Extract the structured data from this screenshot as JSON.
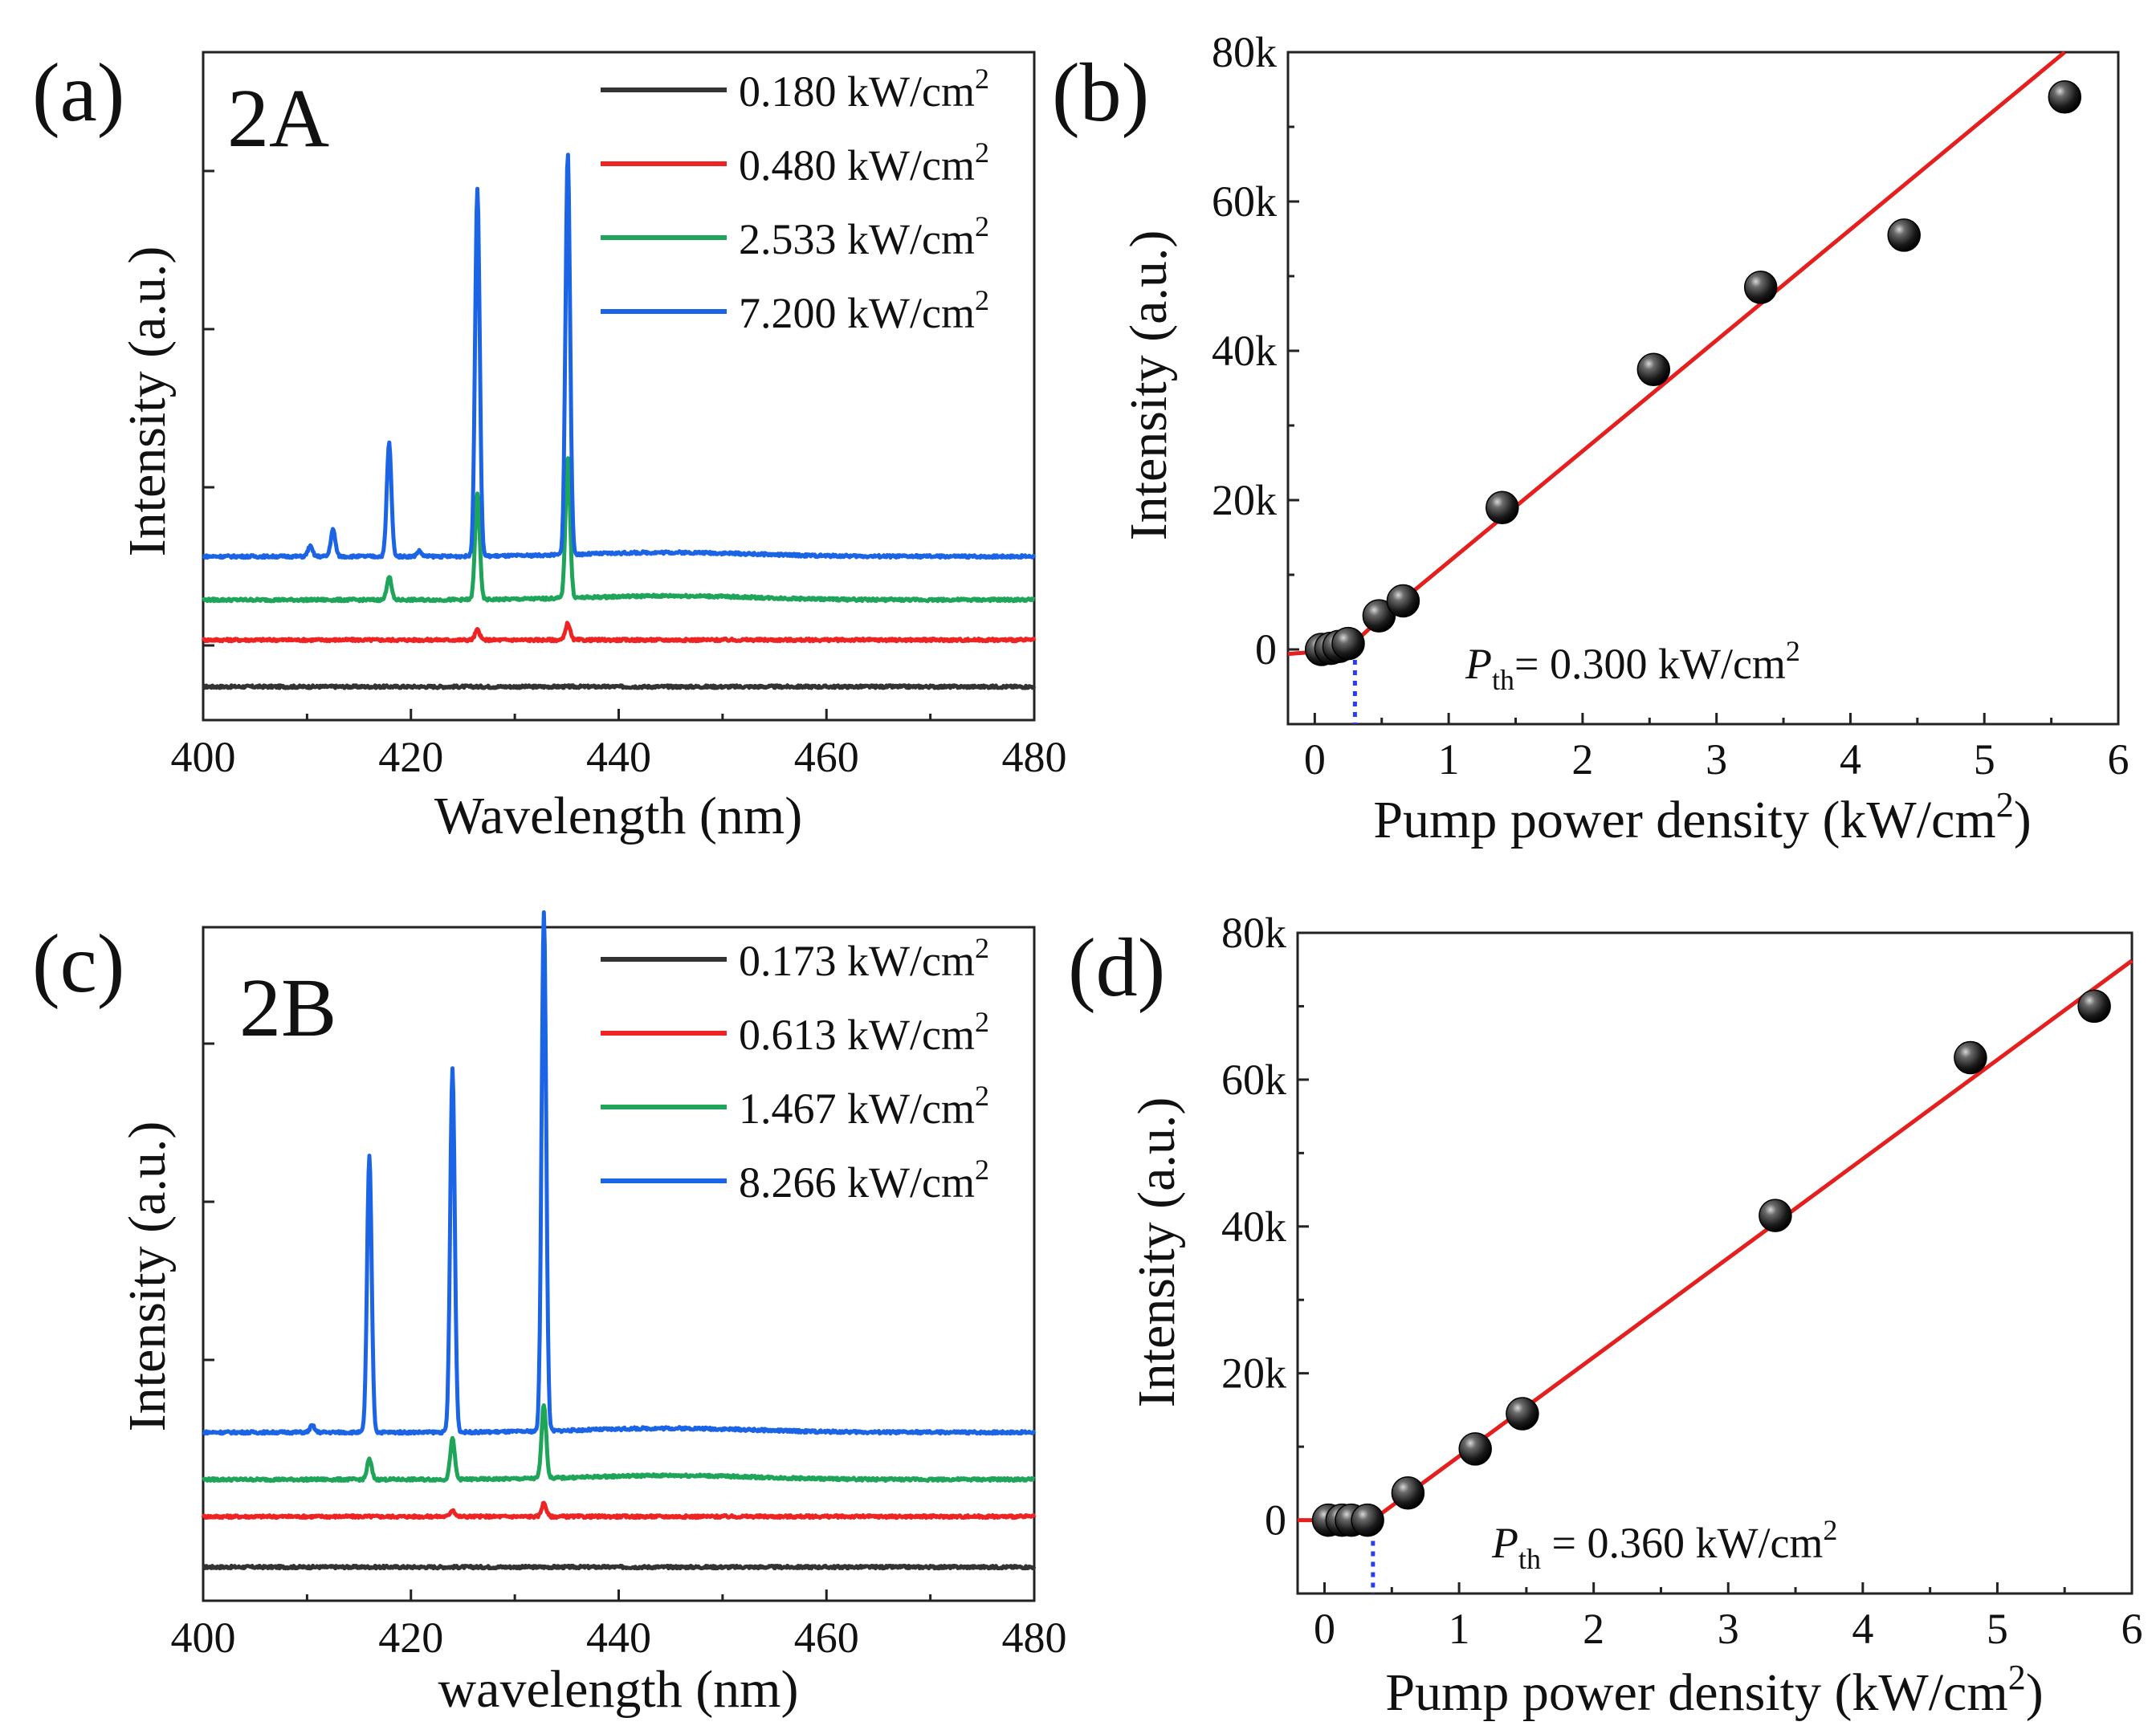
{
  "colors": {
    "black": "#333333",
    "red": "#ee2424",
    "green": "#1fa55a",
    "blue": "#1c64e6",
    "fit": "#e51e1e",
    "threshold": "#2a3cf0"
  },
  "chart_data": [
    {
      "panel": "(a)",
      "sample": "2A",
      "type": "line",
      "xlabel": "Wavelength (nm)",
      "ylabel": "Intensity (a.u.)",
      "xlim": [
        400,
        480
      ],
      "xticks": [
        "400",
        "420",
        "440",
        "460",
        "480"
      ],
      "series": [
        {
          "name": "0.180 kW/cm",
          "sup": "2",
          "color": "#333333",
          "baseline": 0.05,
          "peaks": []
        },
        {
          "name": "0.480 kW/cm",
          "sup": "2",
          "color": "#ee2424",
          "baseline": 0.12,
          "peaks": [
            [
              426.4,
              0.015
            ],
            [
              435.1,
              0.025
            ]
          ]
        },
        {
          "name": "2.533 kW/cm",
          "sup": "2",
          "color": "#1fa55a",
          "baseline": 0.18,
          "peaks": [
            [
              417.9,
              0.035
            ],
            [
              426.4,
              0.16
            ],
            [
              435.1,
              0.21
            ]
          ]
        },
        {
          "name": "7.200 kW/cm",
          "sup": "2",
          "color": "#1c64e6",
          "baseline": 0.245,
          "peaks": [
            [
              410.3,
              0.015
            ],
            [
              412.5,
              0.04
            ],
            [
              417.9,
              0.17
            ],
            [
              420.8,
              0.008
            ],
            [
              426.4,
              0.55
            ],
            [
              435.1,
              0.6
            ]
          ]
        }
      ]
    },
    {
      "panel": "(b)",
      "type": "scatter",
      "xlabel": "Pump power density (kW/cm",
      "xlabel_sup": "2",
      "xlabel_end": ")",
      "ylabel": "Intensity (a.u.)",
      "xlim": [
        -0.2,
        6
      ],
      "ylim": [
        -10000,
        80000
      ],
      "xticks": [
        "0",
        "1",
        "2",
        "3",
        "4",
        "5",
        "6"
      ],
      "yticks": [
        "0",
        "20k",
        "40k",
        "60k",
        "80k"
      ],
      "points": [
        [
          0.05,
          0
        ],
        [
          0.12,
          150
        ],
        [
          0.18,
          400
        ],
        [
          0.25,
          800
        ],
        [
          0.48,
          4500
        ],
        [
          0.66,
          6500
        ],
        [
          1.4,
          19000
        ],
        [
          2.53,
          37500
        ],
        [
          3.33,
          48500
        ],
        [
          4.4,
          55500
        ],
        [
          5.6,
          74000
        ]
      ],
      "fit": [
        [
          -0.2,
          -600
        ],
        [
          0.1,
          -200
        ],
        [
          0.3,
          1000
        ],
        [
          0.5,
          4300
        ],
        [
          5.6,
          80000
        ]
      ],
      "threshold": 0.3,
      "pth_label_sub": "th",
      "pth_value": "= 0.300 kW/cm",
      "pth_sup": "2"
    },
    {
      "panel": "(c)",
      "sample": "2B",
      "type": "line",
      "xlabel": "wavelength (nm)",
      "ylabel": "Intensity (a.u.)",
      "xlim": [
        400,
        480
      ],
      "xticks": [
        "400",
        "420",
        "440",
        "460",
        "480"
      ],
      "series": [
        {
          "name": "0.173 kW/cm",
          "sup": "2",
          "color": "#333333",
          "baseline": 0.05,
          "peaks": []
        },
        {
          "name": "0.613 kW/cm",
          "sup": "2",
          "color": "#ee2424",
          "baseline": 0.125,
          "peaks": [
            [
              424.0,
              0.01
            ],
            [
              432.8,
              0.02
            ]
          ]
        },
        {
          "name": "1.467 kW/cm",
          "sup": "2",
          "color": "#1fa55a",
          "baseline": 0.18,
          "peaks": [
            [
              416.0,
              0.03
            ],
            [
              424.0,
              0.06
            ],
            [
              432.8,
              0.11
            ]
          ]
        },
        {
          "name": "8.266 kW/cm",
          "sup": "2",
          "color": "#1c64e6",
          "baseline": 0.25,
          "peaks": [
            [
              410.5,
              0.01
            ],
            [
              416.0,
              0.41
            ],
            [
              424.0,
              0.54
            ],
            [
              432.8,
              0.77
            ]
          ]
        }
      ]
    },
    {
      "panel": "(d)",
      "type": "scatter",
      "xlabel": "Pump power density (kW/cm",
      "xlabel_sup": "2",
      "xlabel_end": ")",
      "ylabel": "Intensity (a.u.)",
      "xlim": [
        -0.2,
        6
      ],
      "ylim": [
        -10000,
        80000
      ],
      "xticks": [
        "0",
        "1",
        "2",
        "3",
        "4",
        "5",
        "6"
      ],
      "yticks": [
        "0",
        "20k",
        "40k",
        "60k",
        "80k"
      ],
      "points": [
        [
          0.03,
          0
        ],
        [
          0.13,
          0
        ],
        [
          0.2,
          0
        ],
        [
          0.32,
          0
        ],
        [
          0.62,
          3700
        ],
        [
          1.12,
          9700
        ],
        [
          1.47,
          14500
        ],
        [
          3.35,
          41500
        ],
        [
          4.8,
          63000
        ],
        [
          5.72,
          70000
        ]
      ],
      "fit": [
        [
          -0.2,
          0
        ],
        [
          0.36,
          0
        ],
        [
          0.36,
          50
        ],
        [
          6,
          76200
        ]
      ],
      "threshold": 0.36,
      "pth_label_sub": "th",
      "pth_value": " = 0.360 kW/cm",
      "pth_sup": "2"
    }
  ]
}
